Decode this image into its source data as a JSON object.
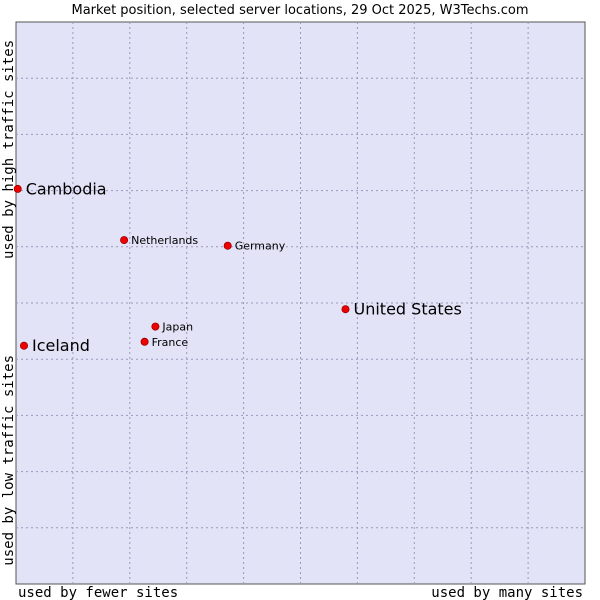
{
  "chart_data": {
    "type": "scatter",
    "title": "Market position, selected server locations, 29 Oct 2025, W3Techs.com",
    "xlabel_left": "used by fewer sites",
    "xlabel_right": "used by many sites",
    "ylabel_top": "used by high traffic sites",
    "ylabel_bottom": "used by low traffic sites",
    "xlim": [
      0,
      100
    ],
    "ylim": [
      0,
      100
    ],
    "grid": true,
    "points": [
      {
        "label": "Cambodia",
        "x": 0.3,
        "y": 70.3,
        "emphasis": "large"
      },
      {
        "label": "Netherlands",
        "x": 19.0,
        "y": 61.2,
        "emphasis": "small"
      },
      {
        "label": "Germany",
        "x": 37.2,
        "y": 60.2,
        "emphasis": "small"
      },
      {
        "label": "United States",
        "x": 57.9,
        "y": 48.9,
        "emphasis": "large"
      },
      {
        "label": "Japan",
        "x": 24.5,
        "y": 45.8,
        "emphasis": "small"
      },
      {
        "label": "France",
        "x": 22.6,
        "y": 43.1,
        "emphasis": "small"
      },
      {
        "label": "Iceland",
        "x": 1.4,
        "y": 42.4,
        "emphasis": "large"
      }
    ]
  },
  "colors": {
    "plot_background": "#e3e3f7",
    "grid": "#9999bb",
    "axis": "#555555",
    "marker": "#ee0000",
    "marker_stroke": "#990000",
    "text": "#000000"
  }
}
